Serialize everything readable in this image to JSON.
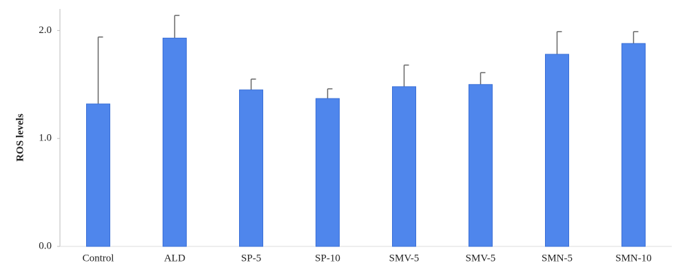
{
  "chart_data": {
    "type": "bar",
    "y_label": "ROS levels",
    "categories": [
      "Control",
      "ALD",
      "SP-5",
      "SP-10",
      "SMV-5",
      "SMV-5",
      "SMN-5",
      "SMN-10"
    ],
    "values": [
      1.32,
      1.93,
      1.45,
      1.37,
      1.48,
      1.5,
      1.78,
      1.88
    ],
    "errors": [
      0.62,
      0.21,
      0.1,
      0.09,
      0.2,
      0.11,
      0.21,
      0.11
    ],
    "color": "#4f86ec",
    "error_color": "#666666",
    "ylim": [
      0,
      2.2
    ],
    "yticks": [
      {
        "value": 0,
        "label": "0.0"
      },
      {
        "value": 1,
        "label": "1.0"
      },
      {
        "value": 2,
        "label": "2.0"
      }
    ]
  }
}
